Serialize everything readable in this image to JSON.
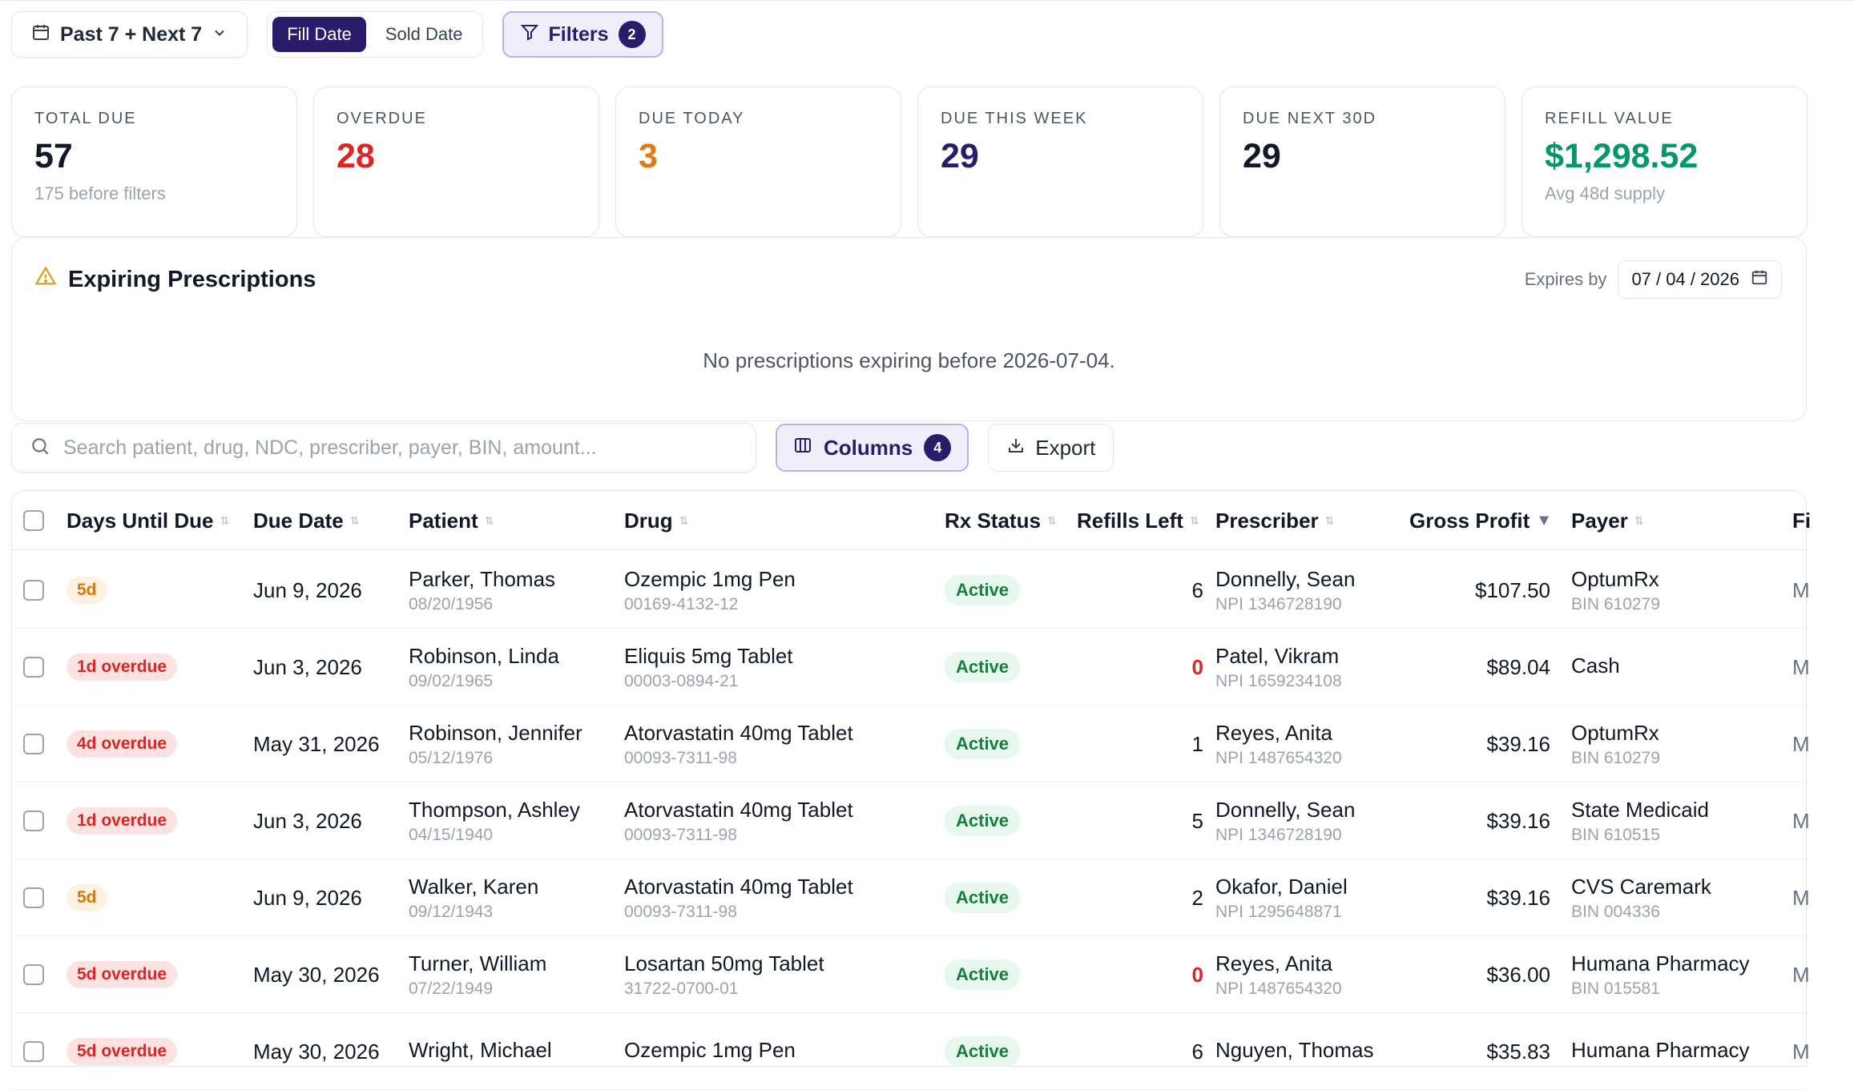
{
  "toolbar": {
    "range_label": "Past 7 + Next 7",
    "fill_date_label": "Fill Date",
    "sold_date_label": "Sold Date",
    "filters_label": "Filters",
    "filters_count": "2"
  },
  "stats": [
    {
      "label": "TOTAL DUE",
      "value": "57",
      "sub": "175 before filters",
      "color": "#111827"
    },
    {
      "label": "OVERDUE",
      "value": "28",
      "sub": "",
      "color": "#dc2626"
    },
    {
      "label": "DUE TODAY",
      "value": "3",
      "sub": "",
      "color": "#e07b12"
    },
    {
      "label": "DUE THIS WEEK",
      "value": "29",
      "sub": "",
      "color": "#2a1b6b"
    },
    {
      "label": "DUE NEXT 30D",
      "value": "29",
      "sub": "",
      "color": "#111827"
    },
    {
      "label": "REFILL VALUE",
      "value": "$1,298.52",
      "sub": "Avg 48d supply",
      "color": "#059669"
    }
  ],
  "expiring": {
    "title": "Expiring Prescriptions",
    "expires_by_label": "Expires by",
    "date_value": "07 / 04 / 2026",
    "empty_message": "No prescriptions expiring before 2026-07-04."
  },
  "search": {
    "placeholder": "Search patient, drug, NDC, prescriber, payer, BIN, amount..."
  },
  "columns_button": {
    "label": "Columns",
    "count": "4"
  },
  "export_button": {
    "label": "Export"
  },
  "table": {
    "headers": {
      "days": "Days Until Due",
      "due_date": "Due Date",
      "patient": "Patient",
      "drug": "Drug",
      "rx_status": "Rx Status",
      "refills": "Refills Left",
      "prescriber": "Prescriber",
      "profit": "Gross Profit",
      "payer": "Payer",
      "cut": "Fi"
    },
    "rows": [
      {
        "days": "5d",
        "days_type": "soon",
        "due": "Jun 9, 2026",
        "patient": "Parker, Thomas",
        "dob": "08/20/1956",
        "drug": "Ozempic 1mg Pen",
        "ndc": "00169-4132-12",
        "status": "Active",
        "refills": "6",
        "prescriber": "Donnelly, Sean",
        "npi": "NPI 1346728190",
        "profit": "$107.50",
        "payer": "OptumRx",
        "bin": "BIN 610279",
        "cut": "M"
      },
      {
        "days": "1d overdue",
        "days_type": "over",
        "due": "Jun 3, 2026",
        "patient": "Robinson, Linda",
        "dob": "09/02/1965",
        "drug": "Eliquis 5mg Tablet",
        "ndc": "00003-0894-21",
        "status": "Active",
        "refills": "0",
        "prescriber": "Patel, Vikram",
        "npi": "NPI 1659234108",
        "profit": "$89.04",
        "payer": "Cash",
        "bin": "",
        "cut": "M"
      },
      {
        "days": "4d overdue",
        "days_type": "over",
        "due": "May 31, 2026",
        "patient": "Robinson, Jennifer",
        "dob": "05/12/1976",
        "drug": "Atorvastatin 40mg Tablet",
        "ndc": "00093-7311-98",
        "status": "Active",
        "refills": "1",
        "prescriber": "Reyes, Anita",
        "npi": "NPI 1487654320",
        "profit": "$39.16",
        "payer": "OptumRx",
        "bin": "BIN 610279",
        "cut": "M"
      },
      {
        "days": "1d overdue",
        "days_type": "over",
        "due": "Jun 3, 2026",
        "patient": "Thompson, Ashley",
        "dob": "04/15/1940",
        "drug": "Atorvastatin 40mg Tablet",
        "ndc": "00093-7311-98",
        "status": "Active",
        "refills": "5",
        "prescriber": "Donnelly, Sean",
        "npi": "NPI 1346728190",
        "profit": "$39.16",
        "payer": "State Medicaid",
        "bin": "BIN 610515",
        "cut": "M"
      },
      {
        "days": "5d",
        "days_type": "soon",
        "due": "Jun 9, 2026",
        "patient": "Walker, Karen",
        "dob": "09/12/1943",
        "drug": "Atorvastatin 40mg Tablet",
        "ndc": "00093-7311-98",
        "status": "Active",
        "refills": "2",
        "prescriber": "Okafor, Daniel",
        "npi": "NPI 1295648871",
        "profit": "$39.16",
        "payer": "CVS Caremark",
        "bin": "BIN 004336",
        "cut": "M"
      },
      {
        "days": "5d overdue",
        "days_type": "over",
        "due": "May 30, 2026",
        "patient": "Turner, William",
        "dob": "07/22/1949",
        "drug": "Losartan 50mg Tablet",
        "ndc": "31722-0700-01",
        "status": "Active",
        "refills": "0",
        "prescriber": "Reyes, Anita",
        "npi": "NPI 1487654320",
        "profit": "$36.00",
        "payer": "Humana Pharmacy",
        "bin": "BIN 015581",
        "cut": "M"
      },
      {
        "days": "5d overdue",
        "days_type": "over",
        "due": "May 30, 2026",
        "patient": "Wright, Michael",
        "dob": "",
        "drug": "Ozempic 1mg Pen",
        "ndc": "",
        "status": "Active",
        "refills": "6",
        "prescriber": "Nguyen, Thomas",
        "npi": "",
        "profit": "$35.83",
        "payer": "Humana Pharmacy",
        "bin": "",
        "cut": "M"
      }
    ]
  }
}
